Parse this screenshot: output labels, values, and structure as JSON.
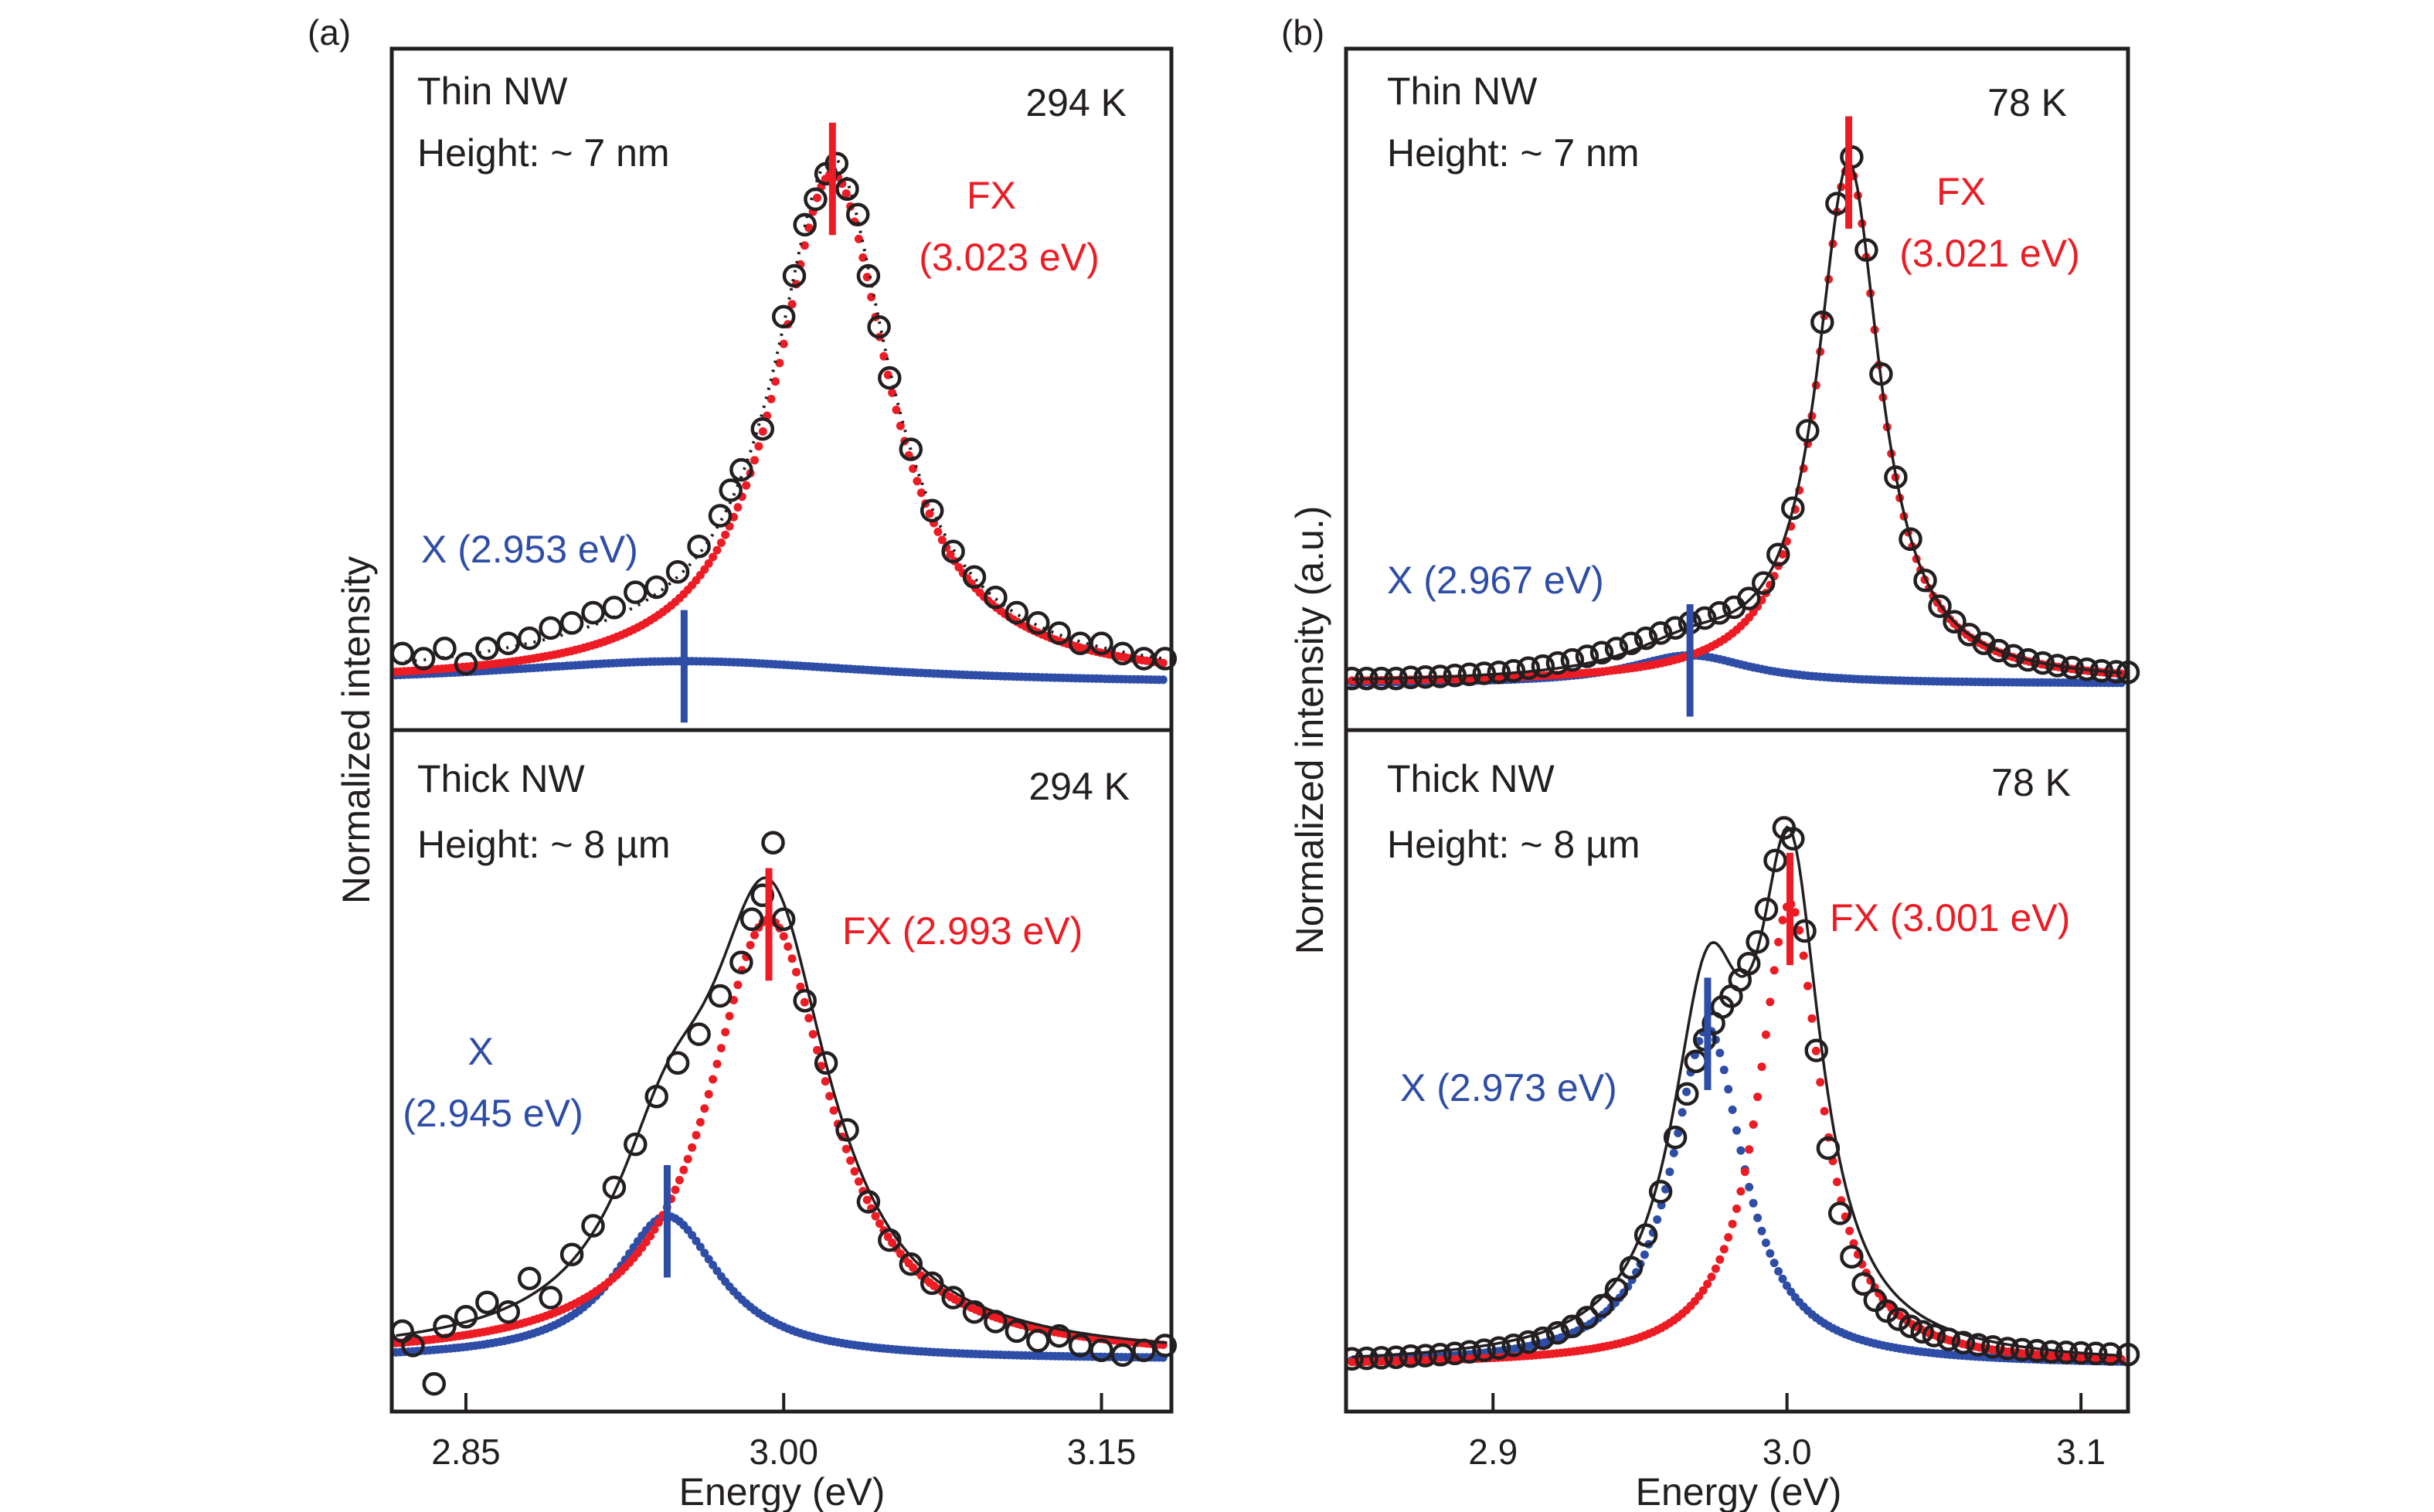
{
  "chart_data": [
    {
      "id": "a",
      "panel_label": "(a)",
      "type": "scatter",
      "xlabel": "Energy (eV)",
      "ylabel": "Normalized intensity",
      "xlim": [
        2.815,
        3.183
      ],
      "xticks": [
        2.85,
        3.0,
        3.15
      ],
      "xtick_labels": [
        "2.85",
        "3.00",
        "3.15"
      ],
      "grid": false,
      "subplots": [
        {
          "id": "a-top",
          "title": "Thin NW",
          "subtitle": "Height: ~ 7 nm",
          "temperature": "294 K",
          "ylim": [
            -0.09,
            1.245
          ],
          "fit_style": "dotted",
          "components": [
            {
              "name": "FX",
              "label_line1": "FX",
              "label_line2": "(3.023 eV)",
              "center": 3.023,
              "fwhm": 0.065,
              "amplitude": 1.0,
              "color": "#ed1c24"
            },
            {
              "name": "X",
              "label_line1": "X (2.953 eV)",
              "label_line2": "",
              "center": 2.953,
              "fwhm": 0.22,
              "amplitude": 0.045,
              "color": "#2e4da7"
            }
          ],
          "data": {
            "x": [
              2.82,
              2.83,
              2.84,
              2.85,
              2.86,
              2.87,
              2.88,
              2.89,
              2.9,
              2.91,
              2.92,
              2.93,
              2.94,
              2.95,
              2.96,
              2.97,
              2.975,
              2.98,
              2.99,
              3.0,
              3.005,
              3.01,
              3.015,
              3.02,
              3.025,
              3.03,
              3.035,
              3.04,
              3.045,
              3.05,
              3.06,
              3.07,
              3.08,
              3.09,
              3.1,
              3.11,
              3.12,
              3.13,
              3.14,
              3.15,
              3.16,
              3.17,
              3.18
            ],
            "y": [
              0.06,
              0.05,
              0.07,
              0.04,
              0.07,
              0.08,
              0.09,
              0.11,
              0.12,
              0.14,
              0.15,
              0.18,
              0.19,
              0.22,
              0.27,
              0.33,
              0.38,
              0.42,
              0.5,
              0.72,
              0.8,
              0.9,
              0.95,
              1.0,
              1.02,
              0.97,
              0.92,
              0.8,
              0.7,
              0.6,
              0.46,
              0.34,
              0.26,
              0.21,
              0.17,
              0.14,
              0.12,
              0.1,
              0.08,
              0.08,
              0.06,
              0.05,
              0.05
            ]
          }
        },
        {
          "id": "a-bottom",
          "title": "Thick NW",
          "subtitle": "Height: ~ 8 µm",
          "temperature": "294 K",
          "ylim": [
            -0.108,
            1.315
          ],
          "fit_style": "solid",
          "components": [
            {
              "name": "FX",
              "label_line1": "FX (2.993 eV)",
              "label_line2": "",
              "center": 2.993,
              "fwhm": 0.07,
              "amplitude": 0.92,
              "color": "#ed1c24"
            },
            {
              "name": "X",
              "label_line1": "X",
              "label_line2": "(2.945 eV)",
              "center": 2.945,
              "fwhm": 0.06,
              "amplitude": 0.3,
              "color": "#2e4da7"
            }
          ],
          "data": {
            "x": [
              2.82,
              2.825,
              2.835,
              2.84,
              2.85,
              2.86,
              2.87,
              2.88,
              2.89,
              2.9,
              2.91,
              2.92,
              2.93,
              2.94,
              2.95,
              2.96,
              2.97,
              2.98,
              2.985,
              2.99,
              2.995,
              3.0,
              3.01,
              3.02,
              3.03,
              3.04,
              3.05,
              3.06,
              3.07,
              3.08,
              3.09,
              3.1,
              3.11,
              3.12,
              3.13,
              3.14,
              3.15,
              3.16,
              3.17,
              3.18
            ],
            "y": [
              0.06,
              0.03,
              -0.05,
              0.07,
              0.09,
              0.12,
              0.1,
              0.17,
              0.13,
              0.22,
              0.28,
              0.36,
              0.45,
              0.55,
              0.62,
              0.68,
              0.76,
              0.83,
              0.92,
              0.97,
              1.08,
              0.92,
              0.75,
              0.62,
              0.48,
              0.33,
              0.25,
              0.2,
              0.16,
              0.13,
              0.1,
              0.08,
              0.06,
              0.04,
              0.05,
              0.03,
              0.02,
              0.01,
              0.02,
              0.03
            ]
          }
        }
      ]
    },
    {
      "id": "b",
      "panel_label": "(b)",
      "type": "scatter",
      "xlabel": "Energy (eV)",
      "ylabel": "Normalized intensity (a.u.)",
      "xlim": [
        2.85,
        3.116
      ],
      "xticks": [
        2.9,
        3.0,
        3.1
      ],
      "xtick_labels": [
        "2.9",
        "3.0",
        "3.1"
      ],
      "grid": false,
      "subplots": [
        {
          "id": "b-top",
          "title": "Thin NW",
          "subtitle": "Height: ~ 7 nm",
          "temperature": "78 K",
          "ylim": [
            -0.09,
            1.23
          ],
          "fit_style": "solid",
          "components": [
            {
              "name": "FX",
              "label_line1": "FX",
              "label_line2": "(3.021 eV)",
              "center": 3.021,
              "fwhm": 0.026,
              "amplitude": 1.0,
              "color": "#ed1c24"
            },
            {
              "name": "X",
              "label_line1": "X (2.967 eV)",
              "label_line2": "",
              "center": 2.967,
              "fwhm": 0.05,
              "amplitude": 0.055,
              "color": "#2e4da7"
            }
          ],
          "data": {
            "x": [
              2.852,
              2.857,
              2.862,
              2.867,
              2.872,
              2.877,
              2.882,
              2.887,
              2.892,
              2.897,
              2.902,
              2.907,
              2.912,
              2.917,
              2.922,
              2.927,
              2.932,
              2.937,
              2.942,
              2.947,
              2.952,
              2.957,
              2.962,
              2.967,
              2.972,
              2.977,
              2.982,
              2.987,
              2.992,
              2.997,
              3.002,
              3.007,
              3.012,
              3.017,
              3.022,
              3.027,
              3.032,
              3.037,
              3.042,
              3.047,
              3.052,
              3.057,
              3.062,
              3.067,
              3.072,
              3.077,
              3.082,
              3.087,
              3.092,
              3.097,
              3.102,
              3.107,
              3.112,
              3.116
            ],
            "y": [
              0.01,
              0.01,
              0.01,
              0.01,
              0.012,
              0.013,
              0.014,
              0.016,
              0.018,
              0.02,
              0.022,
              0.025,
              0.03,
              0.034,
              0.04,
              0.046,
              0.053,
              0.06,
              0.068,
              0.078,
              0.088,
              0.098,
              0.108,
              0.118,
              0.127,
              0.137,
              0.148,
              0.165,
              0.195,
              0.25,
              0.34,
              0.49,
              0.7,
              0.93,
              1.02,
              0.84,
              0.6,
              0.4,
              0.28,
              0.2,
              0.15,
              0.12,
              0.095,
              0.078,
              0.064,
              0.054,
              0.046,
              0.04,
              0.035,
              0.031,
              0.028,
              0.025,
              0.023,
              0.022
            ]
          }
        },
        {
          "id": "b-bottom",
          "title": "Thick NW",
          "subtitle": "Height: ~ 8 µm",
          "temperature": "78 K",
          "ylim": [
            -0.085,
            1.17
          ],
          "fit_style": "solid",
          "components": [
            {
              "name": "FX",
              "label_line1": "FX (3.001 eV)",
              "label_line2": "",
              "center": 3.001,
              "fwhm": 0.026,
              "amplitude": 0.85,
              "color": "#ed1c24"
            },
            {
              "name": "X",
              "label_line1": "X (2.973 eV)",
              "label_line2": "",
              "center": 2.973,
              "fwhm": 0.03,
              "amplitude": 0.62,
              "color": "#2e4da7"
            }
          ],
          "data": {
            "x": [
              2.852,
              2.857,
              2.862,
              2.867,
              2.872,
              2.877,
              2.882,
              2.887,
              2.892,
              2.897,
              2.902,
              2.907,
              2.912,
              2.917,
              2.922,
              2.927,
              2.932,
              2.937,
              2.942,
              2.947,
              2.952,
              2.957,
              2.962,
              2.966,
              2.969,
              2.972,
              2.975,
              2.978,
              2.981,
              2.984,
              2.987,
              2.99,
              2.993,
              2.996,
              2.999,
              3.002,
              3.006,
              3.01,
              3.014,
              3.018,
              3.022,
              3.026,
              3.03,
              3.034,
              3.038,
              3.042,
              3.046,
              3.05,
              3.055,
              3.06,
              3.065,
              3.07,
              3.075,
              3.08,
              3.085,
              3.09,
              3.095,
              3.1,
              3.105,
              3.11,
              3.116
            ],
            "y": [
              0.012,
              0.013,
              0.014,
              0.015,
              0.017,
              0.018,
              0.02,
              0.022,
              0.025,
              0.028,
              0.032,
              0.037,
              0.043,
              0.05,
              0.06,
              0.072,
              0.088,
              0.11,
              0.14,
              0.18,
              0.24,
              0.32,
              0.42,
              0.5,
              0.56,
              0.6,
              0.63,
              0.66,
              0.68,
              0.71,
              0.74,
              0.78,
              0.84,
              0.93,
              0.99,
              0.97,
              0.8,
              0.58,
              0.4,
              0.28,
              0.2,
              0.15,
              0.12,
              0.1,
              0.085,
              0.072,
              0.062,
              0.055,
              0.048,
              0.042,
              0.038,
              0.034,
              0.031,
              0.029,
              0.027,
              0.025,
              0.024,
              0.023,
              0.022,
              0.021,
              0.02
            ]
          }
        }
      ]
    }
  ]
}
